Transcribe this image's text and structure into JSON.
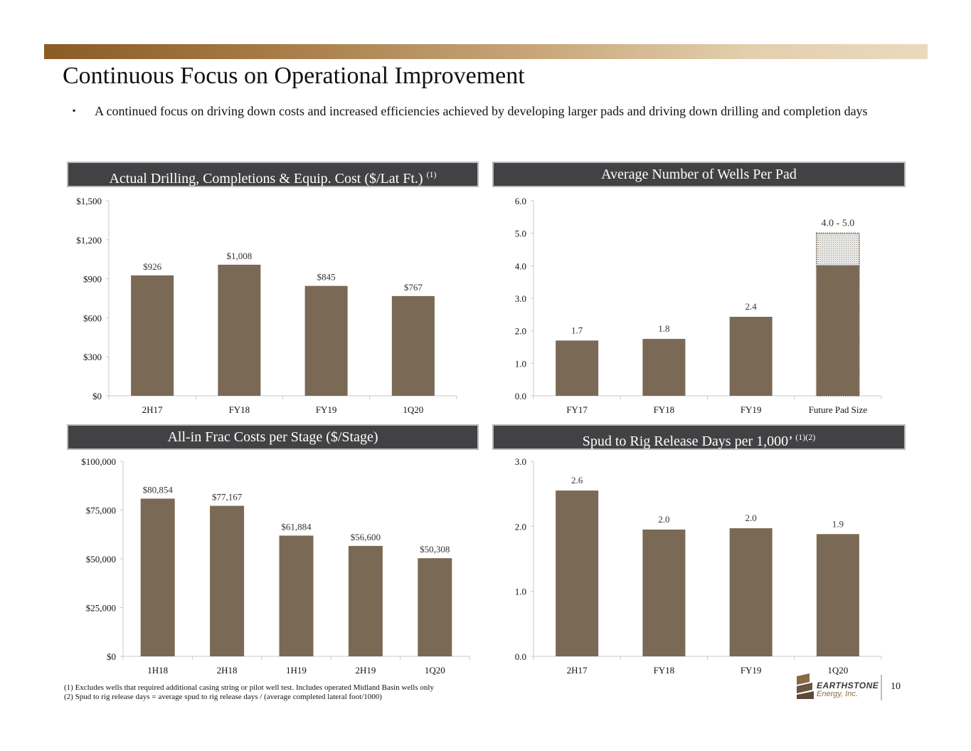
{
  "slide": {
    "title": "Continuous Focus on Operational Improvement",
    "bullet_mark": "▪",
    "bullet": "A continued focus on driving down costs and increased efficiencies achieved by developing larger pads and driving down drilling and completion days",
    "footnotes": [
      "(1)  Excludes wells that required additional casing string or pilot well test. Includes operated Midland Basin wells only",
      "(2)  Spud to rig release days = average spud to rig release days / (average completed lateral foot/1000)"
    ],
    "logo_name": "EARTHSTONE",
    "logo_sub": "Energy, Inc.",
    "page_number": "10"
  },
  "colors": {
    "bar": "#7a6955",
    "header_bg": "#424244",
    "header_border": "#b9b9bb",
    "axis": "#c8c8c8",
    "range_fill": "#e6e6e6",
    "range_dots": "#7a6955"
  },
  "chart_data": [
    {
      "type": "bar",
      "title": "Actual Drilling, Completions & Equip. Cost ($/Lat Ft.)",
      "title_sup": "(1)",
      "categories": [
        "2H17",
        "FY18",
        "FY19",
        "1Q20"
      ],
      "values": [
        926,
        1008,
        845,
        767
      ],
      "data_labels": [
        "$926",
        "$1,008",
        "$845",
        "$767"
      ],
      "y_ticks": [
        0,
        300,
        600,
        900,
        1200,
        1500
      ],
      "y_tick_labels": [
        "$0",
        "$300",
        "$600",
        "$900",
        "$1,200",
        "$1,500"
      ],
      "ylim": [
        0,
        1500
      ],
      "grid": false
    },
    {
      "type": "bar",
      "title": "Average Number of Wells Per Pad",
      "title_sup": "",
      "categories": [
        "FY17",
        "FY18",
        "FY19",
        "Future Pad Size"
      ],
      "values": [
        1.7,
        1.75,
        2.43,
        4.0
      ],
      "range_high": [
        null,
        null,
        null,
        5.0
      ],
      "data_labels": [
        "1.7",
        "1.8",
        "2.4",
        "4.0 - 5.0"
      ],
      "y_ticks": [
        0,
        1,
        2,
        3,
        4,
        5,
        6
      ],
      "y_tick_labels": [
        "0.0",
        "1.0",
        "2.0",
        "3.0",
        "4.0",
        "5.0",
        "6.0"
      ],
      "ylim": [
        0,
        6
      ],
      "grid": false
    },
    {
      "type": "bar",
      "title": "All-in Frac Costs per Stage ($/Stage)",
      "title_sup": "",
      "categories": [
        "1H18",
        "2H18",
        "1H19",
        "2H19",
        "1Q20"
      ],
      "values": [
        80854,
        77167,
        61884,
        56600,
        50308
      ],
      "data_labels": [
        "$80,854",
        "$77,167",
        "$61,884",
        "$56,600",
        "$50,308"
      ],
      "y_ticks": [
        0,
        25000,
        50000,
        75000,
        100000
      ],
      "y_tick_labels": [
        "$0",
        "$25,000",
        "$50,000",
        "$75,000",
        "$100,000"
      ],
      "ylim": [
        0,
        100000
      ],
      "grid": false
    },
    {
      "type": "bar",
      "title": "Spud to Rig Release Days per 1,000’",
      "title_sup": "(1)(2)",
      "categories": [
        "2H17",
        "FY18",
        "FY19",
        "1Q20"
      ],
      "values": [
        2.55,
        1.95,
        1.97,
        1.88
      ],
      "data_labels": [
        "2.6",
        "2.0",
        "2.0",
        "1.9"
      ],
      "y_ticks": [
        0,
        1,
        2,
        3
      ],
      "y_tick_labels": [
        "0.0",
        "1.0",
        "2.0",
        "3.0"
      ],
      "ylim": [
        0,
        3
      ],
      "grid": false
    }
  ]
}
